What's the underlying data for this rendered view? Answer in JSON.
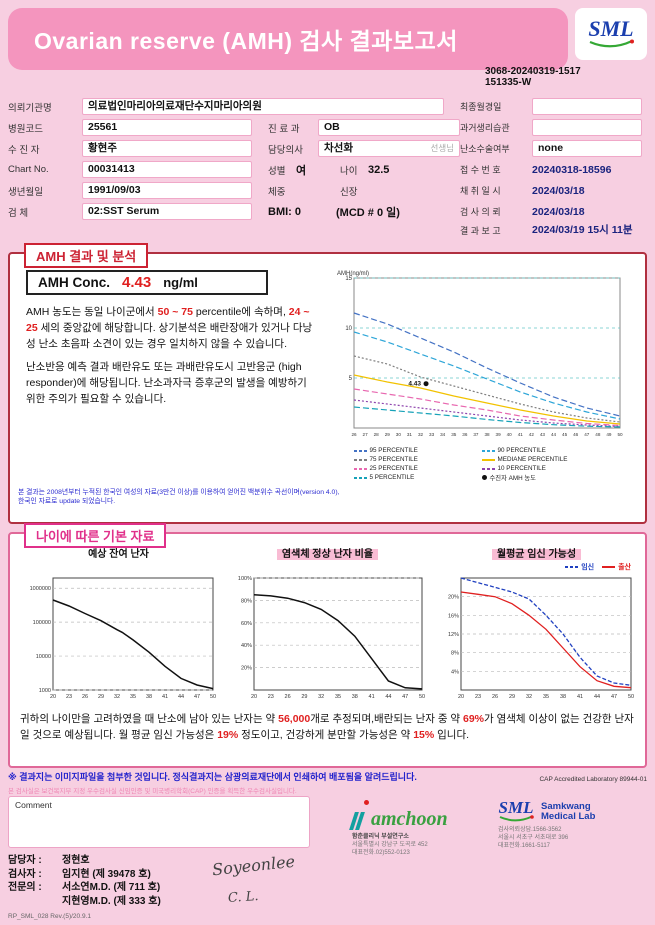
{
  "colors": {
    "header_pink": "#f495be",
    "accent_red": "#e02020",
    "accent_pink": "#e0308a",
    "notice_blue": "#2222cc"
  },
  "header": {
    "title": "Ovarian reserve (AMH) 검사 결과보고서",
    "report_no_line1": "3068-20240319-1517",
    "report_no_line2": "151335-W"
  },
  "logo": {
    "sml": "SML",
    "samkwang_line1": "Samkwang",
    "samkwang_line2": "Medical Lab"
  },
  "info": {
    "left": [
      {
        "label": "의뢰기관명",
        "value": "의료법인마리아의료재단수지마리아의원"
      },
      {
        "label": "병원코드",
        "value": "25561"
      },
      {
        "label": "수 진 자",
        "value": "황현주"
      },
      {
        "label": "Chart No.",
        "value": "00031413"
      },
      {
        "label": "생년월일",
        "value": "1991/09/03"
      },
      {
        "label": "검    체",
        "value": "02:SST Serum"
      }
    ],
    "mid": {
      "dept_label": "진 료 과",
      "dept": "OB",
      "doctor_label": "담당의사",
      "doctor": "차선화",
      "doctor_suffix": "선생님",
      "sex_label": "성별",
      "sex": "여",
      "age_label": "나이",
      "age": "32.5",
      "weight_label": "체중",
      "weight": "",
      "height_label": "신장",
      "height": "",
      "bmi": "BMI: 0",
      "mcd": "(MCD # 0 일)"
    },
    "right": [
      {
        "label": "최종월경일",
        "value": ""
      },
      {
        "label": "과거생리습관",
        "value": ""
      },
      {
        "label": "난소수술여부",
        "value": "none"
      },
      {
        "label": "접 수 번 호",
        "value": "20240318-18596"
      },
      {
        "label": "채 취 일 시",
        "value": "2024/03/18"
      },
      {
        "label": "검 사 의 뢰",
        "value": "2024/03/18"
      },
      {
        "label": "결 과 보 고",
        "value": "2024/03/19 15시 11분"
      }
    ]
  },
  "amh_section": {
    "title": "AMH 결과 및 분석",
    "conc_label": "AMH Conc.",
    "conc_value": "4.43",
    "conc_unit": "ng/ml",
    "para1_parts": [
      "AMH 농도는 동일 나이군에서 ",
      "50 ~ 75",
      " percentile에 속하며, ",
      "24 ~ 25",
      " 세의 중앙값에 해당합니다. 상기분석은 배란장애가 있거나 다낭성 난소 초음파 소견이 있는 경우 일치하지 않을 수 있습니다."
    ],
    "para2": "난소반응 예측 결과 배란유도 또는 과배란유도시 고반응군 (high responder)에 해당됩니다. 난소과자극 증후군의 발생을 예방하기 위한 주의가 필요할 수 있습니다.",
    "footnote_line1": "본 결과는 2008년부터 누적된 한국인 여성의 자료(3만건 이상)를 이용하여 얻어진 백분위수 곡선이며(version 4.0),",
    "footnote_line2": "한국인 자료로 update 되었습니다."
  },
  "age_section": {
    "title": "나이에 따른 기본 자료",
    "summary_parts": [
      "귀하의 나이만을 고려하였을 때 난소에 남아 있는 난자는 약 ",
      "56,000",
      "개로 추정되며,배란되는 난자 중 약 ",
      "69%",
      "가 염색체 이상이 없는 건강한 난자일 것으로 예상됩니다. 월 평균 임신 가능성은 ",
      "19%",
      " 정도이고, 건강하게 분만할 가능성은 약 ",
      "15%",
      " 입니다."
    ]
  },
  "footer": {
    "notice": "※ 결과지는 이미지파일을 첨부한 것입니다. 정식결과지는 삼광의료재단에서 인쇄하여 배포됨을 알려드립니다.",
    "cap_text": "CAP Accredited Laboratory 89944-01",
    "cert_line": "본 검사실은 보건복지부 지정 우수검사실 신임인증 및 미국병리학회(CAP) 인증을 획득한 우수검사실입니다.",
    "comment_label": "Comment",
    "staff": [
      {
        "role": "담당자 :",
        "name": "정현호"
      },
      {
        "role": "검사자 :",
        "name": "임지현 (제 39478 호)"
      },
      {
        "role": "전문의 :",
        "name": "서소연M.D. (제 711 호)"
      },
      {
        "role": "",
        "name": "지현영M.D. (제 333 호)"
      }
    ],
    "signature1": "Soyeonlee",
    "signature2": "C. L.",
    "hamchoon": {
      "logo_text": "amchoon",
      "lines": [
        "함춘클리닉 부설연구소",
        "서울특별시 강남구 도곡로 452",
        "대표전화.02)552-0123"
      ]
    },
    "sml": {
      "lines": [
        "검사의뢰상담.1566-3562",
        "서울시 서초구 서초대로 396",
        "대표전화.1661-5117"
      ]
    },
    "doc_code": "RP_SML_028 Rev.(5)/20.9.1"
  },
  "chart_data": [
    {
      "id": "amh_percentile",
      "type": "line",
      "title": "AMH percentile by age",
      "ylabel": "AMH(ng/ml)",
      "xlim": [
        26,
        50
      ],
      "ylim": [
        0,
        15
      ],
      "xticks": [
        26,
        27,
        28,
        29,
        30,
        31,
        32,
        33,
        34,
        35,
        36,
        37,
        38,
        39,
        40,
        41,
        42,
        43,
        44,
        45,
        46,
        47,
        48,
        49,
        50
      ],
      "yticks": [
        5,
        10,
        15
      ],
      "xtick_font": 4.6,
      "ytick_font": 6,
      "margins": {
        "t": 10,
        "r": 8,
        "b": 12,
        "l": 18
      },
      "frame_color": "#888",
      "grid_color": "#66c8c8",
      "series": [
        {
          "name": "95 PERCENTILE",
          "color": "#4472c4",
          "dash": "6 3",
          "points": [
            [
              26,
              11.5
            ],
            [
              29,
              10.4
            ],
            [
              32,
              9.0
            ],
            [
              35,
              7.6
            ],
            [
              38,
              6.0
            ],
            [
              41,
              4.5
            ],
            [
              44,
              3.1
            ],
            [
              47,
              2.0
            ],
            [
              50,
              1.2
            ]
          ]
        },
        {
          "name": "90 PERCENTILE",
          "color": "#2ea6d8",
          "dash": "6 3",
          "points": [
            [
              26,
              9.6
            ],
            [
              29,
              8.6
            ],
            [
              32,
              7.4
            ],
            [
              35,
              6.2
            ],
            [
              38,
              4.9
            ],
            [
              41,
              3.6
            ],
            [
              44,
              2.5
            ],
            [
              47,
              1.6
            ],
            [
              50,
              0.9
            ]
          ]
        },
        {
          "name": "75 PERCENTILE",
          "color": "#7f7f7f",
          "dash": "2 2",
          "points": [
            [
              26,
              7.2
            ],
            [
              29,
              6.4
            ],
            [
              32,
              5.1
            ],
            [
              35,
              4.2
            ],
            [
              38,
              3.3
            ],
            [
              41,
              2.4
            ],
            [
              44,
              1.6
            ],
            [
              47,
              1.0
            ],
            [
              50,
              0.6
            ]
          ]
        },
        {
          "name": "MEDIANE PERCENTILE",
          "color": "#f2c200",
          "dash": "",
          "points": [
            [
              26,
              5.3
            ],
            [
              29,
              4.6
            ],
            [
              32,
              4.0
            ],
            [
              35,
              3.2
            ],
            [
              38,
              2.5
            ],
            [
              41,
              1.8
            ],
            [
              44,
              1.2
            ],
            [
              47,
              0.7
            ],
            [
              50,
              0.4
            ]
          ]
        },
        {
          "name": "25 PERCENTILE",
          "color": "#e868b0",
          "dash": "6 3",
          "points": [
            [
              26,
              3.9
            ],
            [
              29,
              3.4
            ],
            [
              32,
              2.9
            ],
            [
              35,
              2.3
            ],
            [
              38,
              1.8
            ],
            [
              41,
              1.2
            ],
            [
              44,
              0.8
            ],
            [
              47,
              0.45
            ],
            [
              50,
              0.25
            ]
          ]
        },
        {
          "name": "10 PERCENTILE",
          "color": "#8e44ad",
          "dash": "2 2",
          "points": [
            [
              26,
              2.8
            ],
            [
              29,
              2.4
            ],
            [
              32,
              2.0
            ],
            [
              35,
              1.6
            ],
            [
              38,
              1.2
            ],
            [
              41,
              0.8
            ],
            [
              44,
              0.5
            ],
            [
              47,
              0.3
            ],
            [
              50,
              0.15
            ]
          ]
        },
        {
          "name": "5 PERCENTILE",
          "color": "#17a2b8",
          "dash": "6 3",
          "points": [
            [
              26,
              2.1
            ],
            [
              29,
              1.8
            ],
            [
              32,
              1.5
            ],
            [
              35,
              1.2
            ],
            [
              38,
              0.85
            ],
            [
              41,
              0.55
            ],
            [
              44,
              0.33
            ],
            [
              47,
              0.18
            ],
            [
              50,
              0.1
            ]
          ]
        }
      ],
      "marker": {
        "x": 32.5,
        "y": 4.43,
        "label": "4.43",
        "name": "수진자 AMH 농도",
        "color": "#111"
      }
    },
    {
      "id": "remaining_eggs",
      "type": "line",
      "title": "예상 잔여 난자",
      "yscale": "log",
      "xlim": [
        20,
        50
      ],
      "ylim": [
        1000,
        2000000
      ],
      "xticks": [
        20,
        23,
        26,
        29,
        32,
        35,
        38,
        41,
        44,
        47,
        50
      ],
      "yticks": [
        1000000,
        100000,
        10000,
        1000
      ],
      "xtick_font": 5.5,
      "ytick_font": 5.5,
      "margins": {
        "t": 6,
        "r": 6,
        "b": 12,
        "l": 34
      },
      "frame_color": "#444",
      "grid_color": "#bbb",
      "series": [
        {
          "name": "예상 잔여 난자",
          "color": "#111",
          "width": 1.5,
          "points": [
            [
              20,
              450000
            ],
            [
              23,
              300000
            ],
            [
              26,
              180000
            ],
            [
              29,
              110000
            ],
            [
              32,
              60000
            ],
            [
              33,
              50000
            ],
            [
              35,
              30000
            ],
            [
              38,
              13000
            ],
            [
              41,
              5000
            ],
            [
              44,
              2200
            ],
            [
              47,
              1400
            ],
            [
              50,
              1100
            ]
          ]
        }
      ]
    },
    {
      "id": "normal_egg_ratio",
      "type": "line",
      "title": "염색체 정상 난자 비율",
      "xlim": [
        20,
        50
      ],
      "ylim": [
        0,
        100
      ],
      "xticks": [
        20,
        23,
        26,
        29,
        32,
        35,
        38,
        41,
        44,
        47,
        50
      ],
      "yticks": [
        20,
        40,
        60,
        80,
        100
      ],
      "ytick_suffix": "%",
      "xtick_font": 5.5,
      "ytick_font": 5.5,
      "margins": {
        "t": 6,
        "r": 6,
        "b": 12,
        "l": 26
      },
      "frame_color": "#444",
      "grid_color": "#bbb",
      "series": [
        {
          "name": "염색체 정상 난자 비율",
          "color": "#111",
          "width": 1.5,
          "points": [
            [
              20,
              85
            ],
            [
              23,
              84
            ],
            [
              26,
              82
            ],
            [
              29,
              78
            ],
            [
              32,
              72
            ],
            [
              35,
              62
            ],
            [
              38,
              48
            ],
            [
              41,
              28
            ],
            [
              44,
              8
            ],
            [
              47,
              2
            ],
            [
              50,
              1
            ]
          ]
        }
      ]
    },
    {
      "id": "pregnancy_probability",
      "type": "line",
      "title": "월평균 임신 가능성",
      "xlim": [
        20,
        50
      ],
      "ylim": [
        0,
        24
      ],
      "xticks": [
        20,
        23,
        26,
        29,
        32,
        35,
        38,
        41,
        44,
        47,
        50
      ],
      "yticks": [
        4,
        8,
        12,
        16,
        20
      ],
      "ytick_suffix": "%",
      "xtick_font": 5.5,
      "ytick_font": 5.5,
      "margins": {
        "t": 6,
        "r": 6,
        "b": 12,
        "l": 24
      },
      "frame_color": "#444",
      "grid_color": "#bbb",
      "series": [
        {
          "name": "임신",
          "color": "#2040c0",
          "dash": "4 2",
          "width": 1.3,
          "points": [
            [
              20,
              24
            ],
            [
              23,
              23
            ],
            [
              26,
              22
            ],
            [
              29,
              21
            ],
            [
              32,
              19.5
            ],
            [
              35,
              16
            ],
            [
              38,
              12
            ],
            [
              41,
              7
            ],
            [
              44,
              3
            ],
            [
              47,
              1.5
            ],
            [
              50,
              1
            ]
          ]
        },
        {
          "name": "출산",
          "color": "#e02020",
          "width": 1.3,
          "points": [
            [
              20,
              21
            ],
            [
              23,
              20.5
            ],
            [
              26,
              20
            ],
            [
              29,
              18.5
            ],
            [
              32,
              16
            ],
            [
              35,
              13
            ],
            [
              38,
              9
            ],
            [
              41,
              5
            ],
            [
              44,
              2
            ],
            [
              47,
              0.8
            ],
            [
              50,
              0.5
            ]
          ]
        }
      ]
    }
  ]
}
